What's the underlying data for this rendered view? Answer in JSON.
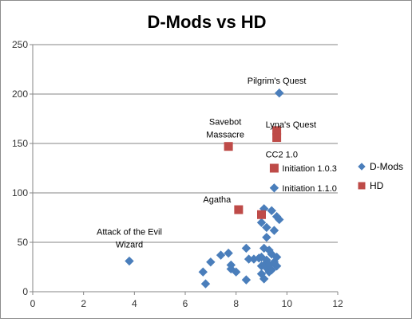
{
  "chart_data": {
    "type": "scatter",
    "title": "D-Mods vs HD",
    "xlim": [
      0,
      12
    ],
    "ylim": [
      0,
      250
    ],
    "xticks": [
      "0",
      "2",
      "4",
      "6",
      "8",
      "10",
      "12"
    ],
    "yticks": [
      "0",
      "50",
      "100",
      "150",
      "200",
      "250"
    ],
    "grid": "horizontal",
    "legend_position": "right",
    "series": [
      {
        "name": "D-Mods",
        "color": "#4a7ebb",
        "marker": "diamond",
        "points": [
          [
            9.7,
            201
          ],
          [
            9.5,
            105
          ],
          [
            3.8,
            31
          ],
          [
            9.1,
            84
          ],
          [
            9.4,
            82
          ],
          [
            9.6,
            76
          ],
          [
            9.7,
            73
          ],
          [
            9.0,
            70
          ],
          [
            9.2,
            65
          ],
          [
            9.5,
            62
          ],
          [
            9.2,
            55
          ],
          [
            6.8,
            8
          ],
          [
            6.7,
            20
          ],
          [
            7.0,
            30
          ],
          [
            7.4,
            37
          ],
          [
            7.7,
            39
          ],
          [
            7.8,
            27
          ],
          [
            7.8,
            23
          ],
          [
            8.0,
            20
          ],
          [
            8.4,
            44
          ],
          [
            8.5,
            33
          ],
          [
            8.4,
            12
          ],
          [
            8.7,
            33
          ],
          [
            8.9,
            34
          ],
          [
            9.1,
            44
          ],
          [
            9.3,
            42
          ],
          [
            9.0,
            35
          ],
          [
            9.2,
            32
          ],
          [
            9.4,
            38
          ],
          [
            9.6,
            35
          ],
          [
            9.5,
            30
          ],
          [
            9.6,
            26
          ],
          [
            9.1,
            27
          ],
          [
            9.2,
            24
          ],
          [
            9.3,
            20
          ],
          [
            9.0,
            18
          ],
          [
            9.1,
            13
          ],
          [
            9.4,
            22
          ],
          [
            9.3,
            27
          ],
          [
            9.0,
            26
          ]
        ]
      },
      {
        "name": "HD",
        "color": "#be4b48",
        "marker": "square",
        "points": [
          [
            9.6,
            163
          ],
          [
            9.6,
            156
          ],
          [
            7.7,
            147
          ],
          [
            9.5,
            125
          ],
          [
            8.1,
            83
          ],
          [
            9.0,
            78
          ]
        ]
      }
    ],
    "annotations": [
      {
        "text": "Pilgrim's Quest",
        "x": 9.7,
        "y": 201
      },
      {
        "text": "Lyna's Quest",
        "x": 9.6,
        "y": 163
      },
      {
        "text": "CC2 1.0",
        "x": 9.6,
        "y": 156
      },
      {
        "text": "Initiation 1.0.3",
        "x": 9.5,
        "y": 125
      },
      {
        "text": "Initiation 1.1.0",
        "x": 9.5,
        "y": 105
      },
      {
        "text": "Agatha",
        "x": 8.1,
        "y": 83
      },
      {
        "text": "Savebot",
        "x": 7.7,
        "y": 147
      },
      {
        "text": "Massacre",
        "x": 7.7,
        "y": 147
      },
      {
        "text": "Attack of the Evil",
        "x": 3.8,
        "y": 31
      },
      {
        "text": "Wizard",
        "x": 3.8,
        "y": 31
      }
    ]
  }
}
